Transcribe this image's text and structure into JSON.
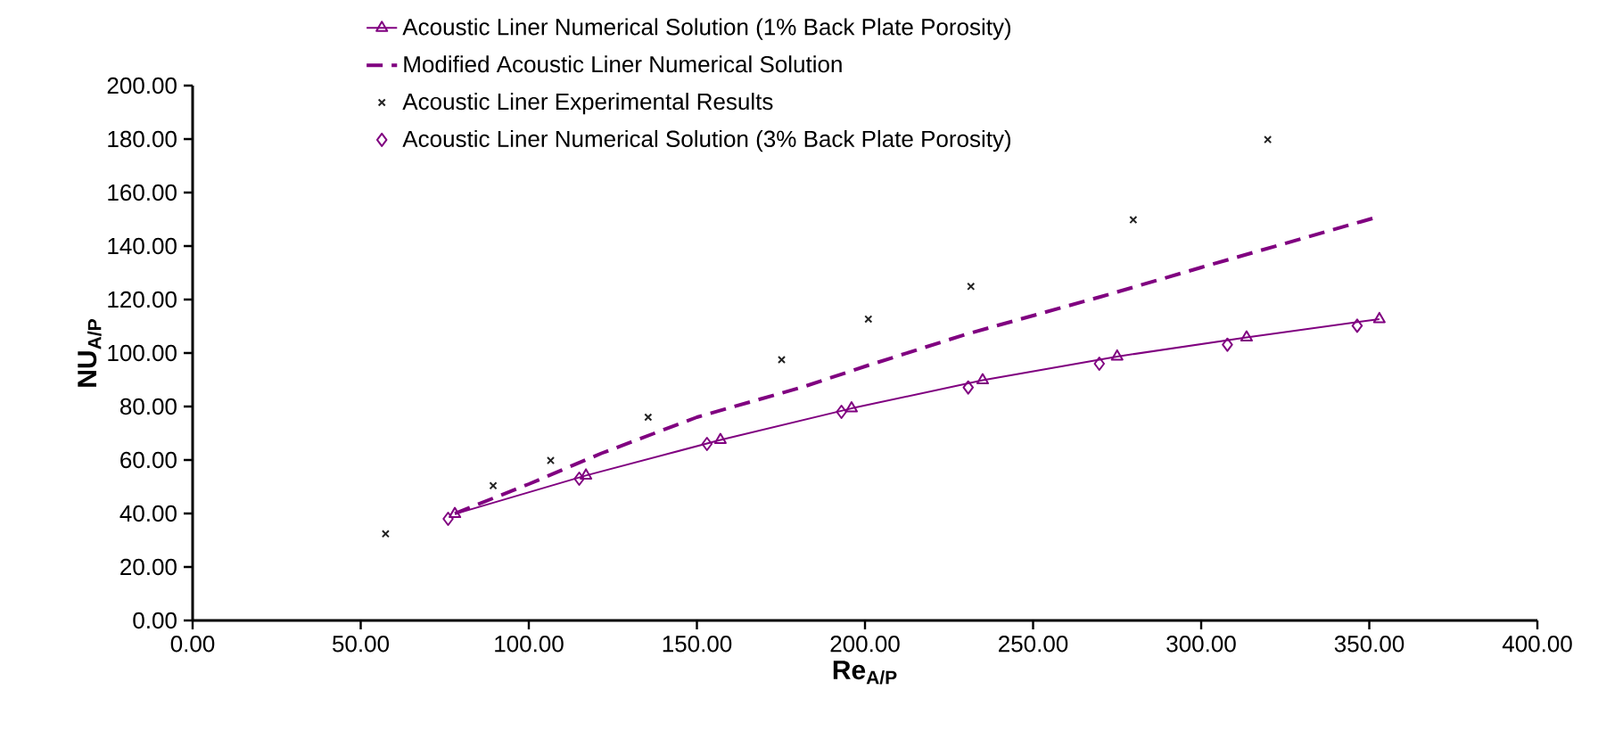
{
  "chart_data": {
    "type": "line",
    "xlabel": "Re$_{A/P}$",
    "ylabel": "NU$_{A/P}$",
    "xlim": [
      0,
      400
    ],
    "ylim": [
      0,
      200
    ],
    "xticks": [
      {
        "value": 0,
        "label": "0.00"
      },
      {
        "value": 50,
        "label": "50.00"
      },
      {
        "value": 100,
        "label": "100.00"
      },
      {
        "value": 150,
        "label": "150.00"
      },
      {
        "value": 200,
        "label": "200.00"
      },
      {
        "value": 250,
        "label": "250.00"
      },
      {
        "value": 300,
        "label": "300.00"
      },
      {
        "value": 350,
        "label": "350.00"
      },
      {
        "value": 400,
        "label": "400.00"
      }
    ],
    "yticks": [
      {
        "value": 0,
        "label": "0.00"
      },
      {
        "value": 20,
        "label": "20.00"
      },
      {
        "value": 40,
        "label": "40.00"
      },
      {
        "value": 60,
        "label": "60.00"
      },
      {
        "value": 80,
        "label": "80.00"
      },
      {
        "value": 100,
        "label": "100.00"
      },
      {
        "value": 120,
        "label": "120.00"
      },
      {
        "value": 140,
        "label": "140.00"
      },
      {
        "value": 160,
        "label": "160.00"
      },
      {
        "value": 180,
        "label": "180.00"
      },
      {
        "value": 200,
        "label": "200.00"
      }
    ],
    "legend": "top",
    "grid": false,
    "series": [
      {
        "name": "Acoustic Liner Numerical Solution (1% Back Plate Porosity)",
        "color": "#800080",
        "marker": "triangle",
        "line_style": "solid",
        "x": [
          78,
          117,
          157,
          196,
          235,
          275,
          313.5,
          353
        ],
        "values": [
          39.8,
          54.2,
          67.5,
          79.3,
          89.8,
          98.7,
          105.8,
          112.7
        ]
      },
      {
        "name": "Modified Acoustic Liner Numerical Solution",
        "color": "#800080",
        "marker": "none",
        "line_style": "dashed",
        "x": [
          78,
          100,
          121.6,
          150,
          182,
          200,
          230,
          270,
          300,
          352.5
        ],
        "values": [
          40,
          51,
          62.5,
          76,
          87.5,
          95,
          107,
          121,
          132,
          150.9
        ]
      },
      {
        "name": "Acoustic Liner Experimental Results",
        "type": "scatter",
        "color": "#222222",
        "marker": "cross",
        "x": [
          57.4,
          89.4,
          106.5,
          135.5,
          175.2,
          201,
          231.5,
          279.8,
          319.8
        ],
        "values": [
          32.4,
          50.4,
          59.8,
          76,
          97.5,
          112.7,
          124.9,
          149.8,
          179.8
        ]
      },
      {
        "name": "Acoustic Liner Numerical Solution (3% Back Plate Porosity)",
        "type": "scatter",
        "color": "#800080",
        "marker": "diamond",
        "x": [
          76,
          115,
          153,
          193,
          230.7,
          269.7,
          307.8,
          346.4
        ],
        "values": [
          38,
          53,
          66,
          78,
          87.1,
          96,
          103.1,
          110.2
        ]
      }
    ]
  }
}
